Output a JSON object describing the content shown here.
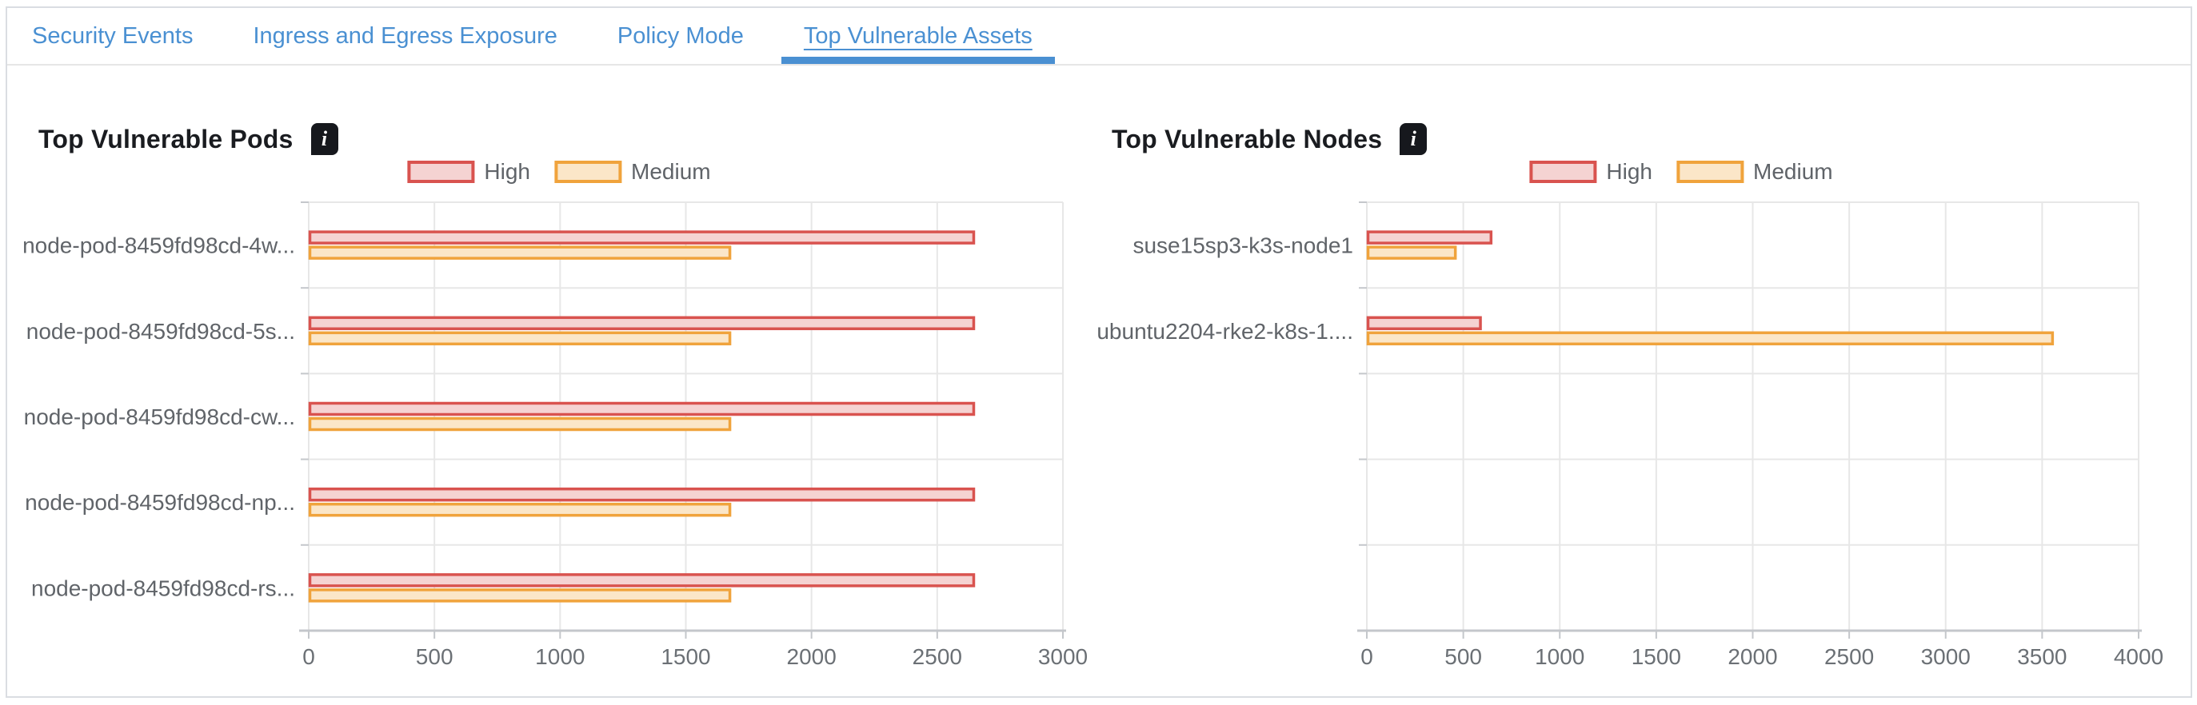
{
  "tabs": {
    "items": [
      {
        "label": "Security Events",
        "active": false
      },
      {
        "label": "Ingress and Egress Exposure",
        "active": false
      },
      {
        "label": "Policy Mode",
        "active": false
      },
      {
        "label": "Top Vulnerable Assets",
        "active": true
      }
    ]
  },
  "colors": {
    "tab_blue": "#4a90d2",
    "active_tab_indicator": "#4a90d2",
    "high_stroke": "#d9534f",
    "high_fill": "#f5d3d2",
    "medium_stroke": "#f0a33c",
    "medium_fill": "#fbe6c8",
    "grid_line": "#e7e7e7",
    "axis_line": "#c4c7cb",
    "category_text": "#606469",
    "tick_text": "#6b7075",
    "info_icon_bg": "#16181d"
  },
  "chart_data": [
    {
      "type": "bar",
      "orientation": "horizontal",
      "title": "Top Vulnerable Pods",
      "info_icon": "i",
      "legend": {
        "position": "top",
        "entries": [
          "High",
          "Medium"
        ]
      },
      "categories": [
        "node-pod-8459fd98cd-4w...",
        "node-pod-8459fd98cd-5s...",
        "node-pod-8459fd98cd-cw...",
        "node-pod-8459fd98cd-np...",
        "node-pod-8459fd98cd-rs..."
      ],
      "series": [
        {
          "name": "High",
          "stroke": "#d9534f",
          "fill": "#f5d3d2",
          "values": [
            2650,
            2650,
            2650,
            2650,
            2650
          ]
        },
        {
          "name": "Medium",
          "stroke": "#f0a33c",
          "fill": "#fbe6c8",
          "values": [
            1680,
            1680,
            1680,
            1680,
            1680
          ]
        }
      ],
      "xlim": [
        0,
        3000
      ],
      "xticks": [
        0,
        500,
        1000,
        1500,
        2000,
        2500,
        3000
      ],
      "grid": true,
      "grid_rows": 5
    },
    {
      "type": "bar",
      "orientation": "horizontal",
      "title": "Top Vulnerable Nodes",
      "info_icon": "i",
      "legend": {
        "position": "top",
        "entries": [
          "High",
          "Medium"
        ]
      },
      "categories": [
        "suse15sp3-k3s-node1",
        "ubuntu2204-rke2-k8s-1...."
      ],
      "series": [
        {
          "name": "High",
          "stroke": "#d9534f",
          "fill": "#f5d3d2",
          "values": [
            650,
            595
          ]
        },
        {
          "name": "Medium",
          "stroke": "#f0a33c",
          "fill": "#fbe6c8",
          "values": [
            465,
            3560
          ]
        }
      ],
      "xlim": [
        0,
        4000
      ],
      "xticks": [
        0,
        500,
        1000,
        1500,
        2000,
        2500,
        3000,
        3500,
        4000
      ],
      "grid": true,
      "grid_rows": 5
    }
  ]
}
